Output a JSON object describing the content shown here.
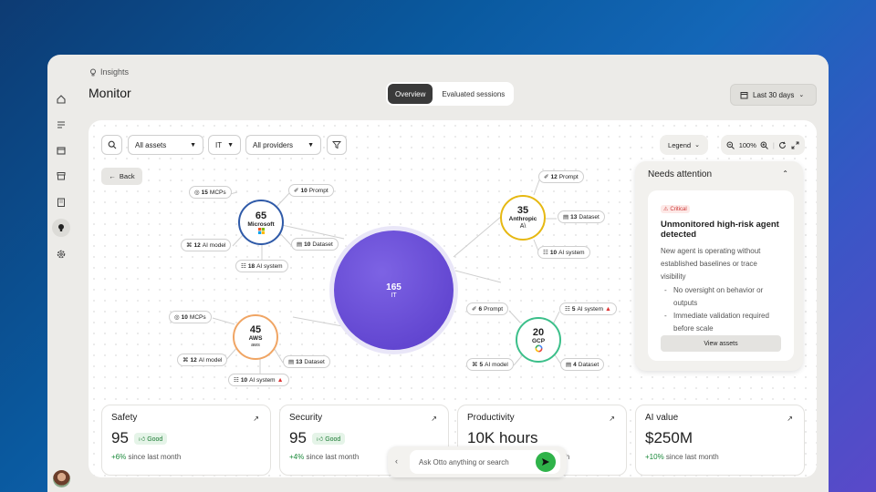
{
  "breadcrumb": "Insights",
  "page_title": "Monitor",
  "tabs": [
    "Overview",
    "Evaluated sessions"
  ],
  "date_range": "Last 30 days",
  "filters": {
    "assets": "All assets",
    "dept": "IT",
    "providers": "All providers"
  },
  "legend": "Legend",
  "zoom": "100%",
  "back": "Back",
  "center": {
    "count": "165",
    "label": "IT"
  },
  "nodes": {
    "microsoft": {
      "count": "65",
      "label": "Microsoft"
    },
    "anthropic": {
      "count": "35",
      "label": "Anthropic",
      "logo": "A\\"
    },
    "aws": {
      "count": "45",
      "label": "AWS",
      "logo": "aws"
    },
    "gcp": {
      "count": "20",
      "label": "GCP"
    }
  },
  "chips": {
    "ms_mcps": {
      "n": "15",
      "t": "MCPs"
    },
    "ms_prompt": {
      "n": "10",
      "t": "Prompt"
    },
    "ms_aimodel": {
      "n": "12",
      "t": "AI model"
    },
    "ms_dataset": {
      "n": "10",
      "t": "Dataset"
    },
    "ms_aisystem": {
      "n": "18",
      "t": "AI system"
    },
    "an_prompt": {
      "n": "12",
      "t": "Prompt"
    },
    "an_dataset": {
      "n": "13",
      "t": "Dataset"
    },
    "an_aisystem": {
      "n": "10",
      "t": "AI system"
    },
    "aws_mcps": {
      "n": "10",
      "t": "MCPs"
    },
    "aws_aimodel": {
      "n": "12",
      "t": "AI model"
    },
    "aws_dataset": {
      "n": "13",
      "t": "Dataset"
    },
    "aws_aisystem": {
      "n": "10",
      "t": "AI system"
    },
    "gcp_prompt": {
      "n": "6",
      "t": "Prompt"
    },
    "gcp_aisystem": {
      "n": "5",
      "t": "AI system"
    },
    "gcp_aimodel": {
      "n": "5",
      "t": "AI model"
    },
    "gcp_dataset": {
      "n": "4",
      "t": "Dataset"
    }
  },
  "attention": {
    "title": "Needs attention",
    "badge": "Critical",
    "heading": "Unmonitored high-risk agent detected",
    "body": "New agent is operating without established baselines or trace visibility",
    "bullets": [
      "No oversight on behavior or outputs",
      "Immediate validation required before scale"
    ],
    "button": "View assets"
  },
  "metrics": [
    {
      "title": "Safety",
      "value": "95",
      "badge": "Good",
      "delta": "+6%",
      "desc": "since last month"
    },
    {
      "title": "Security",
      "value": "95",
      "badge": "Good",
      "delta": "+4%",
      "desc": "since last month"
    },
    {
      "title": "Productivity",
      "value": "10K hours",
      "badge": "",
      "delta": "",
      "desc": "month"
    },
    {
      "title": "AI value",
      "value": "$250M",
      "badge": "",
      "delta": "+10%",
      "desc": "since last month"
    }
  ],
  "ask_placeholder": "Ask Otto anything or search",
  "colors": {
    "microsoft": "#2f5aa8",
    "anthropic": "#e6b812",
    "aws": "#f0a564",
    "gcp": "#3cbf8a",
    "center": "#6347d1",
    "good": "#1b8a3b",
    "send": "#2fb34a"
  }
}
